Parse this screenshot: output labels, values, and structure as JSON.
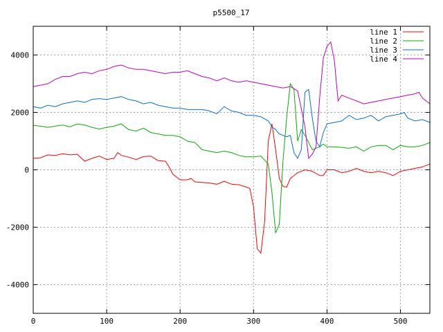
{
  "chart_data": {
    "type": "line",
    "title": "p5500_17",
    "xlabel": "",
    "ylabel": "",
    "xlim": [
      0,
      540
    ],
    "ylim": [
      -5000,
      5000
    ],
    "xticks": [
      0,
      100,
      200,
      300,
      400,
      500
    ],
    "xtick_labels": [
      "0",
      "100",
      "200",
      "300",
      "400",
      "500"
    ],
    "yticks": [
      -4000,
      -2000,
      0,
      2000,
      4000
    ],
    "ytick_labels": [
      "-4000",
      "-2000",
      "0",
      "2000",
      "4000"
    ],
    "grid": true,
    "legend_position": "top-right",
    "series": [
      {
        "name": "line 1",
        "color": "#ff0000",
        "points": [
          [
            0,
            400
          ],
          [
            10,
            420
          ],
          [
            20,
            520
          ],
          [
            30,
            500
          ],
          [
            40,
            560
          ],
          [
            50,
            520
          ],
          [
            60,
            540
          ],
          [
            70,
            300
          ],
          [
            80,
            400
          ],
          [
            90,
            480
          ],
          [
            100,
            360
          ],
          [
            110,
            400
          ],
          [
            115,
            600
          ],
          [
            120,
            500
          ],
          [
            130,
            440
          ],
          [
            140,
            360
          ],
          [
            150,
            460
          ],
          [
            160,
            480
          ],
          [
            170,
            320
          ],
          [
            180,
            300
          ],
          [
            185,
            100
          ],
          [
            190,
            -150
          ],
          [
            200,
            -350
          ],
          [
            210,
            -350
          ],
          [
            215,
            -300
          ],
          [
            220,
            -420
          ],
          [
            230,
            -440
          ],
          [
            240,
            -460
          ],
          [
            250,
            -500
          ],
          [
            260,
            -400
          ],
          [
            270,
            -500
          ],
          [
            280,
            -520
          ],
          [
            290,
            -600
          ],
          [
            295,
            -650
          ],
          [
            300,
            -1300
          ],
          [
            305,
            -2750
          ],
          [
            310,
            -2900
          ],
          [
            315,
            -1800
          ],
          [
            320,
            1000
          ],
          [
            325,
            1600
          ],
          [
            330,
            700
          ],
          [
            335,
            -300
          ],
          [
            340,
            -580
          ],
          [
            345,
            -600
          ],
          [
            350,
            -300
          ],
          [
            360,
            -100
          ],
          [
            370,
            0
          ],
          [
            380,
            -50
          ],
          [
            390,
            -200
          ],
          [
            395,
            -200
          ],
          [
            400,
            0
          ],
          [
            410,
            0
          ],
          [
            420,
            -100
          ],
          [
            430,
            -50
          ],
          [
            440,
            50
          ],
          [
            450,
            -50
          ],
          [
            460,
            -100
          ],
          [
            470,
            -50
          ],
          [
            480,
            -100
          ],
          [
            490,
            -200
          ],
          [
            500,
            -50
          ],
          [
            510,
            0
          ],
          [
            520,
            50
          ],
          [
            530,
            100
          ],
          [
            540,
            200
          ]
        ]
      },
      {
        "name": "line 2",
        "color": "#00b000",
        "points": [
          [
            0,
            1550
          ],
          [
            10,
            1520
          ],
          [
            20,
            1480
          ],
          [
            30,
            1520
          ],
          [
            40,
            1560
          ],
          [
            50,
            1500
          ],
          [
            60,
            1600
          ],
          [
            70,
            1560
          ],
          [
            80,
            1480
          ],
          [
            90,
            1420
          ],
          [
            100,
            1480
          ],
          [
            110,
            1520
          ],
          [
            120,
            1600
          ],
          [
            130,
            1400
          ],
          [
            140,
            1350
          ],
          [
            150,
            1450
          ],
          [
            160,
            1300
          ],
          [
            170,
            1250
          ],
          [
            180,
            1200
          ],
          [
            190,
            1200
          ],
          [
            200,
            1150
          ],
          [
            210,
            1000
          ],
          [
            220,
            950
          ],
          [
            230,
            700
          ],
          [
            240,
            650
          ],
          [
            250,
            600
          ],
          [
            260,
            650
          ],
          [
            270,
            600
          ],
          [
            280,
            500
          ],
          [
            290,
            450
          ],
          [
            300,
            450
          ],
          [
            310,
            480
          ],
          [
            320,
            200
          ],
          [
            325,
            -800
          ],
          [
            330,
            -2200
          ],
          [
            335,
            -1900
          ],
          [
            340,
            300
          ],
          [
            345,
            1800
          ],
          [
            350,
            3000
          ],
          [
            355,
            2800
          ],
          [
            360,
            1000
          ],
          [
            365,
            1400
          ],
          [
            370,
            1200
          ],
          [
            380,
            700
          ],
          [
            390,
            800
          ],
          [
            395,
            900
          ],
          [
            400,
            800
          ],
          [
            410,
            800
          ],
          [
            420,
            780
          ],
          [
            430,
            750
          ],
          [
            440,
            800
          ],
          [
            450,
            650
          ],
          [
            460,
            800
          ],
          [
            470,
            850
          ],
          [
            480,
            850
          ],
          [
            490,
            700
          ],
          [
            500,
            850
          ],
          [
            510,
            800
          ],
          [
            520,
            800
          ],
          [
            530,
            850
          ],
          [
            540,
            950
          ]
        ]
      },
      {
        "name": "line 3",
        "color": "#0070e0",
        "points": [
          [
            0,
            2200
          ],
          [
            10,
            2150
          ],
          [
            20,
            2250
          ],
          [
            30,
            2200
          ],
          [
            40,
            2300
          ],
          [
            50,
            2350
          ],
          [
            60,
            2400
          ],
          [
            70,
            2350
          ],
          [
            80,
            2450
          ],
          [
            90,
            2480
          ],
          [
            100,
            2450
          ],
          [
            110,
            2500
          ],
          [
            120,
            2550
          ],
          [
            130,
            2450
          ],
          [
            140,
            2400
          ],
          [
            150,
            2300
          ],
          [
            160,
            2350
          ],
          [
            170,
            2250
          ],
          [
            180,
            2200
          ],
          [
            190,
            2150
          ],
          [
            200,
            2150
          ],
          [
            210,
            2100
          ],
          [
            220,
            2100
          ],
          [
            230,
            2100
          ],
          [
            240,
            2050
          ],
          [
            250,
            1950
          ],
          [
            260,
            2200
          ],
          [
            270,
            2050
          ],
          [
            280,
            2000
          ],
          [
            290,
            1900
          ],
          [
            300,
            1900
          ],
          [
            310,
            1850
          ],
          [
            320,
            1700
          ],
          [
            325,
            1500
          ],
          [
            330,
            1400
          ],
          [
            335,
            1250
          ],
          [
            340,
            1200
          ],
          [
            345,
            1150
          ],
          [
            350,
            1200
          ],
          [
            355,
            600
          ],
          [
            360,
            400
          ],
          [
            365,
            700
          ],
          [
            370,
            2700
          ],
          [
            375,
            2800
          ],
          [
            380,
            1800
          ],
          [
            385,
            1000
          ],
          [
            390,
            800
          ],
          [
            395,
            1300
          ],
          [
            400,
            1600
          ],
          [
            410,
            1650
          ],
          [
            420,
            1700
          ],
          [
            430,
            1900
          ],
          [
            440,
            1750
          ],
          [
            450,
            1800
          ],
          [
            460,
            1900
          ],
          [
            470,
            1700
          ],
          [
            480,
            1850
          ],
          [
            490,
            1900
          ],
          [
            500,
            1950
          ],
          [
            505,
            2000
          ],
          [
            510,
            1800
          ],
          [
            520,
            1700
          ],
          [
            530,
            1750
          ],
          [
            540,
            1650
          ]
        ]
      },
      {
        "name": "line 4",
        "color": "#c000c0",
        "points": [
          [
            0,
            2900
          ],
          [
            10,
            2950
          ],
          [
            20,
            3000
          ],
          [
            30,
            3150
          ],
          [
            40,
            3250
          ],
          [
            50,
            3250
          ],
          [
            60,
            3350
          ],
          [
            70,
            3400
          ],
          [
            80,
            3350
          ],
          [
            90,
            3450
          ],
          [
            100,
            3500
          ],
          [
            110,
            3600
          ],
          [
            120,
            3650
          ],
          [
            130,
            3550
          ],
          [
            140,
            3500
          ],
          [
            150,
            3500
          ],
          [
            160,
            3450
          ],
          [
            170,
            3400
          ],
          [
            180,
            3350
          ],
          [
            190,
            3400
          ],
          [
            200,
            3400
          ],
          [
            210,
            3450
          ],
          [
            220,
            3350
          ],
          [
            230,
            3250
          ],
          [
            240,
            3200
          ],
          [
            250,
            3100
          ],
          [
            260,
            3200
          ],
          [
            270,
            3100
          ],
          [
            280,
            3050
          ],
          [
            290,
            3100
          ],
          [
            300,
            3050
          ],
          [
            310,
            3000
          ],
          [
            320,
            2950
          ],
          [
            330,
            2900
          ],
          [
            340,
            2850
          ],
          [
            350,
            2900
          ],
          [
            360,
            2750
          ],
          [
            370,
            1500
          ],
          [
            375,
            400
          ],
          [
            380,
            550
          ],
          [
            385,
            800
          ],
          [
            390,
            2500
          ],
          [
            395,
            3900
          ],
          [
            400,
            4300
          ],
          [
            405,
            4450
          ],
          [
            410,
            3800
          ],
          [
            415,
            2400
          ],
          [
            420,
            2600
          ],
          [
            430,
            2500
          ],
          [
            440,
            2400
          ],
          [
            450,
            2300
          ],
          [
            460,
            2350
          ],
          [
            470,
            2400
          ],
          [
            480,
            2450
          ],
          [
            490,
            2500
          ],
          [
            500,
            2550
          ],
          [
            510,
            2600
          ],
          [
            520,
            2650
          ],
          [
            525,
            2700
          ],
          [
            530,
            2500
          ],
          [
            540,
            2300
          ]
        ]
      }
    ]
  }
}
